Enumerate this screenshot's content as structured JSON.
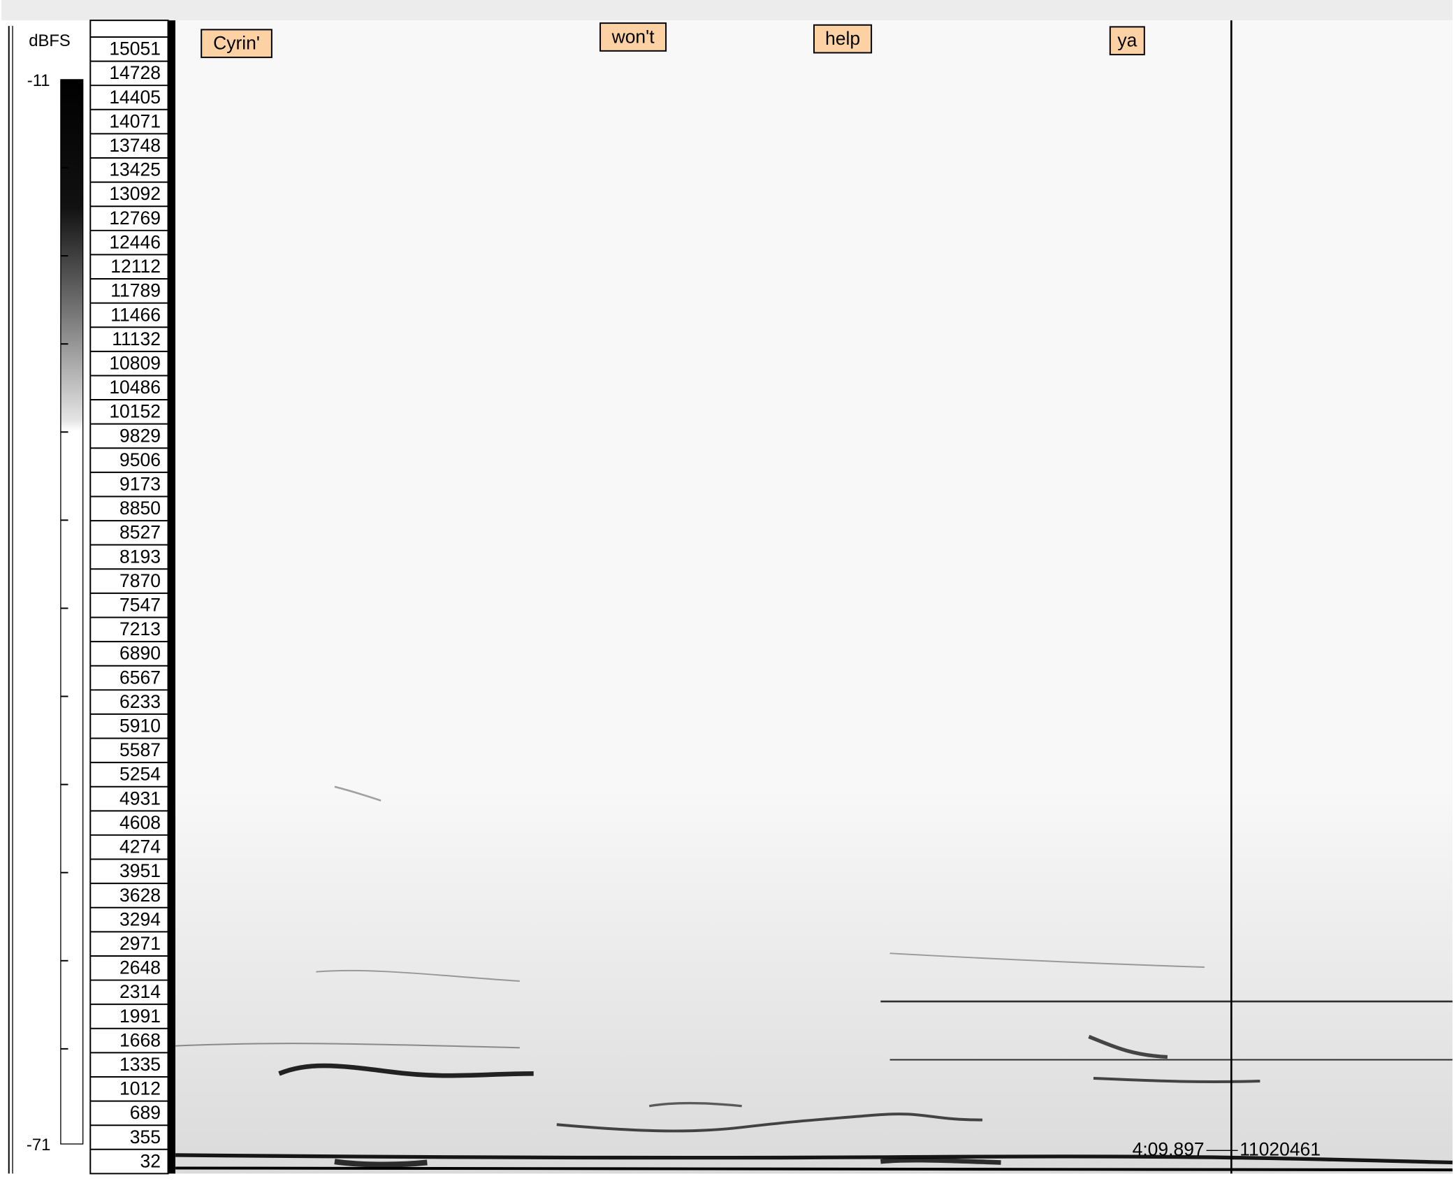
{
  "colorbar": {
    "title": "dBFS",
    "max": -11,
    "min": -71
  },
  "frequency_labels": [
    15051,
    14728,
    14405,
    14071,
    13748,
    13425,
    13092,
    12769,
    12446,
    12112,
    11789,
    11466,
    11132,
    10809,
    10486,
    10152,
    9829,
    9506,
    9173,
    8850,
    8527,
    8193,
    7870,
    7547,
    7213,
    6890,
    6567,
    6233,
    5910,
    5587,
    5254,
    4931,
    4608,
    4274,
    3951,
    3628,
    3294,
    2971,
    2648,
    2314,
    1991,
    1668,
    1335,
    1012,
    689,
    355,
    32
  ],
  "words": [
    "Cyrin'",
    "won't",
    "help",
    "ya"
  ],
  "cursor": {
    "time": "4:09.897",
    "sample": "11020461"
  }
}
